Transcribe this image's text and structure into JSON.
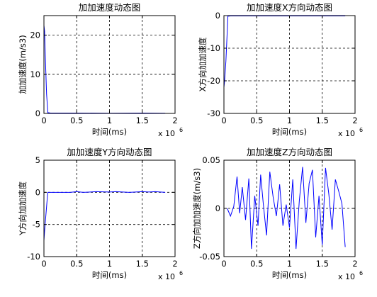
{
  "figure": {
    "background": "#ffffff",
    "line_color": "#0000ff",
    "grid_style": "dashed",
    "x_exponent_label": "x 10",
    "x_exponent_power": "6"
  },
  "chart_data": [
    {
      "type": "line",
      "title": "加加速度动态图",
      "xlabel": "时间(ms)",
      "ylabel": "加加速度(m/s3)",
      "xlim": [
        0,
        2
      ],
      "ylim": [
        0,
        25
      ],
      "x_ticks": [
        0,
        0.5,
        1,
        1.5,
        2
      ],
      "x_tick_labels": [
        "0",
        "0.5",
        "1",
        "1.5",
        "2"
      ],
      "y_ticks": [
        0,
        10,
        20
      ],
      "y_tick_labels": [
        "0",
        "10",
        "20"
      ],
      "grid": true,
      "series": [
        {
          "x": [
            0,
            0.01,
            0.02,
            0.04,
            0.06,
            0.1,
            0.5,
            1.0,
            1.5,
            1.85
          ],
          "y": [
            22.5,
            21,
            15,
            5,
            0.2,
            0.1,
            0.1,
            0.05,
            0.1,
            0.05
          ]
        }
      ]
    },
    {
      "type": "line",
      "title": "加加速度X方向动态图",
      "xlabel": "时间(ms)",
      "ylabel": "X方向加加速度",
      "xlim": [
        0,
        2
      ],
      "ylim": [
        -30,
        0
      ],
      "x_ticks": [
        0,
        0.5,
        1,
        1.5,
        2
      ],
      "x_tick_labels": [
        "0",
        "0.5",
        "1",
        "1.5",
        "2"
      ],
      "y_ticks": [
        -30,
        -20,
        -10,
        0
      ],
      "y_tick_labels": [
        "-30",
        "-20",
        "-10",
        "0"
      ],
      "grid": true,
      "series": [
        {
          "x": [
            0,
            0.01,
            0.03,
            0.05,
            0.06,
            0.1,
            0.5,
            1.0,
            1.5,
            1.85
          ],
          "y": [
            -22,
            -20,
            -14,
            -5,
            -0.2,
            -0.1,
            -0.1,
            -0.1,
            -0.1,
            -0.1
          ]
        }
      ]
    },
    {
      "type": "line",
      "title": "加加速度Y方向动态图",
      "xlabel": "时间(ms)",
      "ylabel": "Y方向加加速度",
      "xlim": [
        0,
        2
      ],
      "ylim": [
        -10,
        5
      ],
      "x_ticks": [
        0,
        0.5,
        1,
        1.5,
        2
      ],
      "x_tick_labels": [
        "0",
        "0.5",
        "1",
        "1.5",
        "2"
      ],
      "y_ticks": [
        -10,
        -5,
        0,
        5
      ],
      "y_tick_labels": [
        "-10",
        "-5",
        "0",
        "5"
      ],
      "grid": true,
      "series": [
        {
          "x": [
            0,
            0.01,
            0.03,
            0.05,
            0.06,
            0.1,
            0.4,
            0.5,
            0.6,
            0.8,
            1.0,
            1.1,
            1.3,
            1.5,
            1.6,
            1.7,
            1.85
          ],
          "y": [
            -7.5,
            -6,
            -3.5,
            -1,
            0,
            0,
            0,
            0.1,
            0,
            0.1,
            0.05,
            0.1,
            0,
            0.1,
            0.05,
            0.1,
            0
          ]
        }
      ]
    },
    {
      "type": "line",
      "title": "加加速度Z方向动态图",
      "xlabel": "时间(ms)",
      "ylabel": "Z方向加加速度(m/s3)",
      "xlim": [
        0,
        2
      ],
      "ylim": [
        -0.05,
        0.05
      ],
      "x_ticks": [
        0,
        0.5,
        1,
        1.5,
        2
      ],
      "x_tick_labels": [
        "0",
        "0.5",
        "1",
        "1.5",
        "2"
      ],
      "y_ticks": [
        -0.05,
        0,
        0.05
      ],
      "y_tick_labels": [
        "-0.05",
        "0",
        "0.05"
      ],
      "grid": true,
      "series": [
        {
          "x": [
            0.05,
            0.1,
            0.15,
            0.2,
            0.24,
            0.28,
            0.33,
            0.38,
            0.42,
            0.47,
            0.52,
            0.56,
            0.6,
            0.65,
            0.7,
            0.75,
            0.8,
            0.85,
            0.9,
            0.95,
            1.0,
            1.05,
            1.1,
            1.15,
            1.2,
            1.25,
            1.3,
            1.35,
            1.4,
            1.45,
            1.5,
            1.55,
            1.6,
            1.65,
            1.7,
            1.75,
            1.8,
            1.85
          ],
          "y": [
            0,
            -0.008,
            0.002,
            0.033,
            -0.005,
            0.022,
            -0.012,
            0.031,
            -0.042,
            0.013,
            -0.018,
            0.035,
            0.005,
            -0.028,
            0.038,
            0.012,
            -0.008,
            0.025,
            -0.018,
            0.004,
            -0.02,
            0.03,
            -0.042,
            0.008,
            0.043,
            -0.015,
            0.026,
            0.04,
            -0.03,
            0.013,
            -0.038,
            0.042,
            0.015,
            -0.022,
            0.03,
            0.018,
            0.005,
            -0.04
          ]
        }
      ]
    }
  ]
}
